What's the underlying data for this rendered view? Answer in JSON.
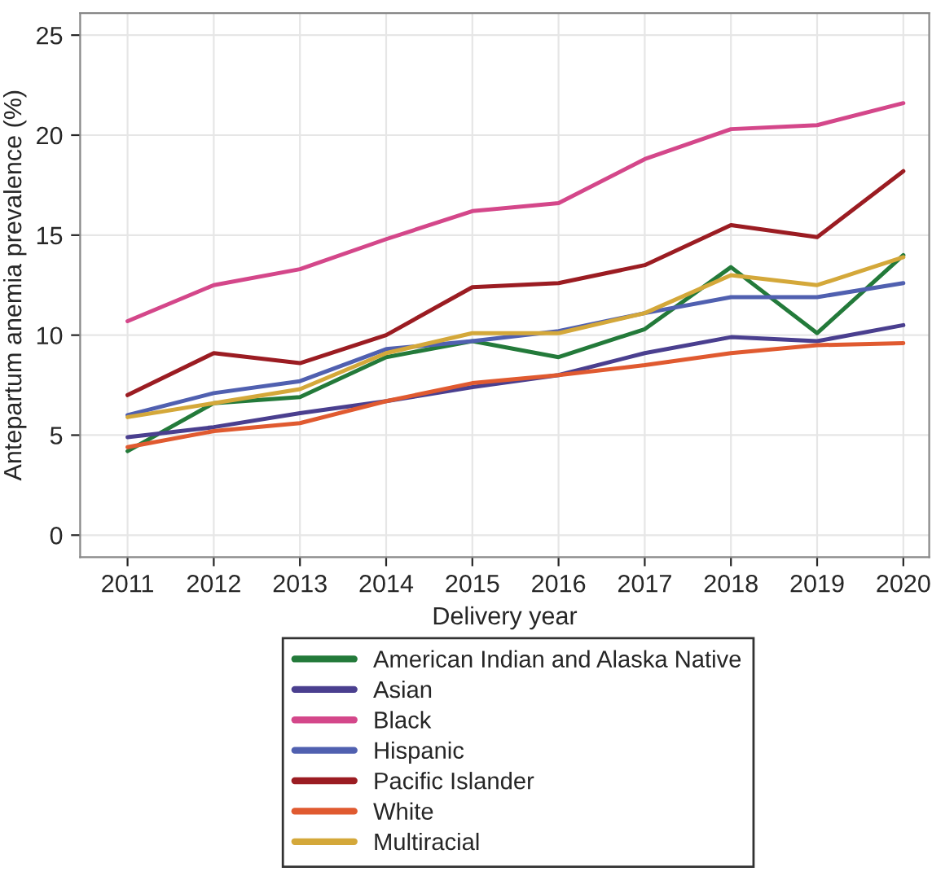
{
  "chart_data": {
    "type": "line",
    "xlabel": "Delivery year",
    "ylabel": "Antepartum anemia prevalence (%)",
    "x": [
      2011,
      2012,
      2013,
      2014,
      2015,
      2016,
      2017,
      2018,
      2019,
      2020
    ],
    "xlim": [
      2010.45,
      2020.3
    ],
    "xticks": [
      2011,
      2012,
      2013,
      2014,
      2015,
      2016,
      2017,
      2018,
      2019,
      2020
    ],
    "ylim": [
      -1.1,
      26.1
    ],
    "yticks": [
      0,
      5,
      10,
      15,
      20,
      25
    ],
    "grid": true,
    "legend": "bottom",
    "marker": "none",
    "line_style": "solid",
    "series": [
      {
        "name": "American Indian and Alaska Native",
        "color": "#237a3a",
        "values": [
          4.2,
          6.6,
          6.9,
          8.9,
          9.7,
          8.9,
          10.3,
          13.4,
          10.1,
          14.0
        ]
      },
      {
        "name": "Asian",
        "color": "#4a3f8f",
        "values": [
          4.9,
          5.4,
          6.1,
          6.7,
          7.4,
          8.0,
          9.1,
          9.9,
          9.7,
          10.5
        ]
      },
      {
        "name": "Black",
        "color": "#d4478a",
        "values": [
          10.7,
          12.5,
          13.3,
          14.8,
          16.2,
          16.6,
          18.8,
          20.3,
          20.5,
          21.6
        ]
      },
      {
        "name": "Hispanic",
        "color": "#5060b0",
        "values": [
          6.0,
          7.1,
          7.7,
          9.3,
          9.7,
          10.2,
          11.1,
          11.9,
          11.9,
          12.6
        ]
      },
      {
        "name": "Pacific Islander",
        "color": "#9b1c22",
        "values": [
          7.0,
          9.1,
          8.6,
          10.0,
          12.4,
          12.6,
          13.5,
          15.5,
          14.9,
          18.2
        ]
      },
      {
        "name": "White",
        "color": "#e05a30",
        "values": [
          4.4,
          5.2,
          5.6,
          6.7,
          7.6,
          8.0,
          8.5,
          9.1,
          9.5,
          9.6
        ]
      },
      {
        "name": "Multiracial",
        "color": "#d4a83a",
        "values": [
          5.9,
          6.6,
          7.3,
          9.1,
          10.1,
          10.1,
          11.1,
          13.0,
          12.5,
          13.9
        ]
      }
    ]
  }
}
